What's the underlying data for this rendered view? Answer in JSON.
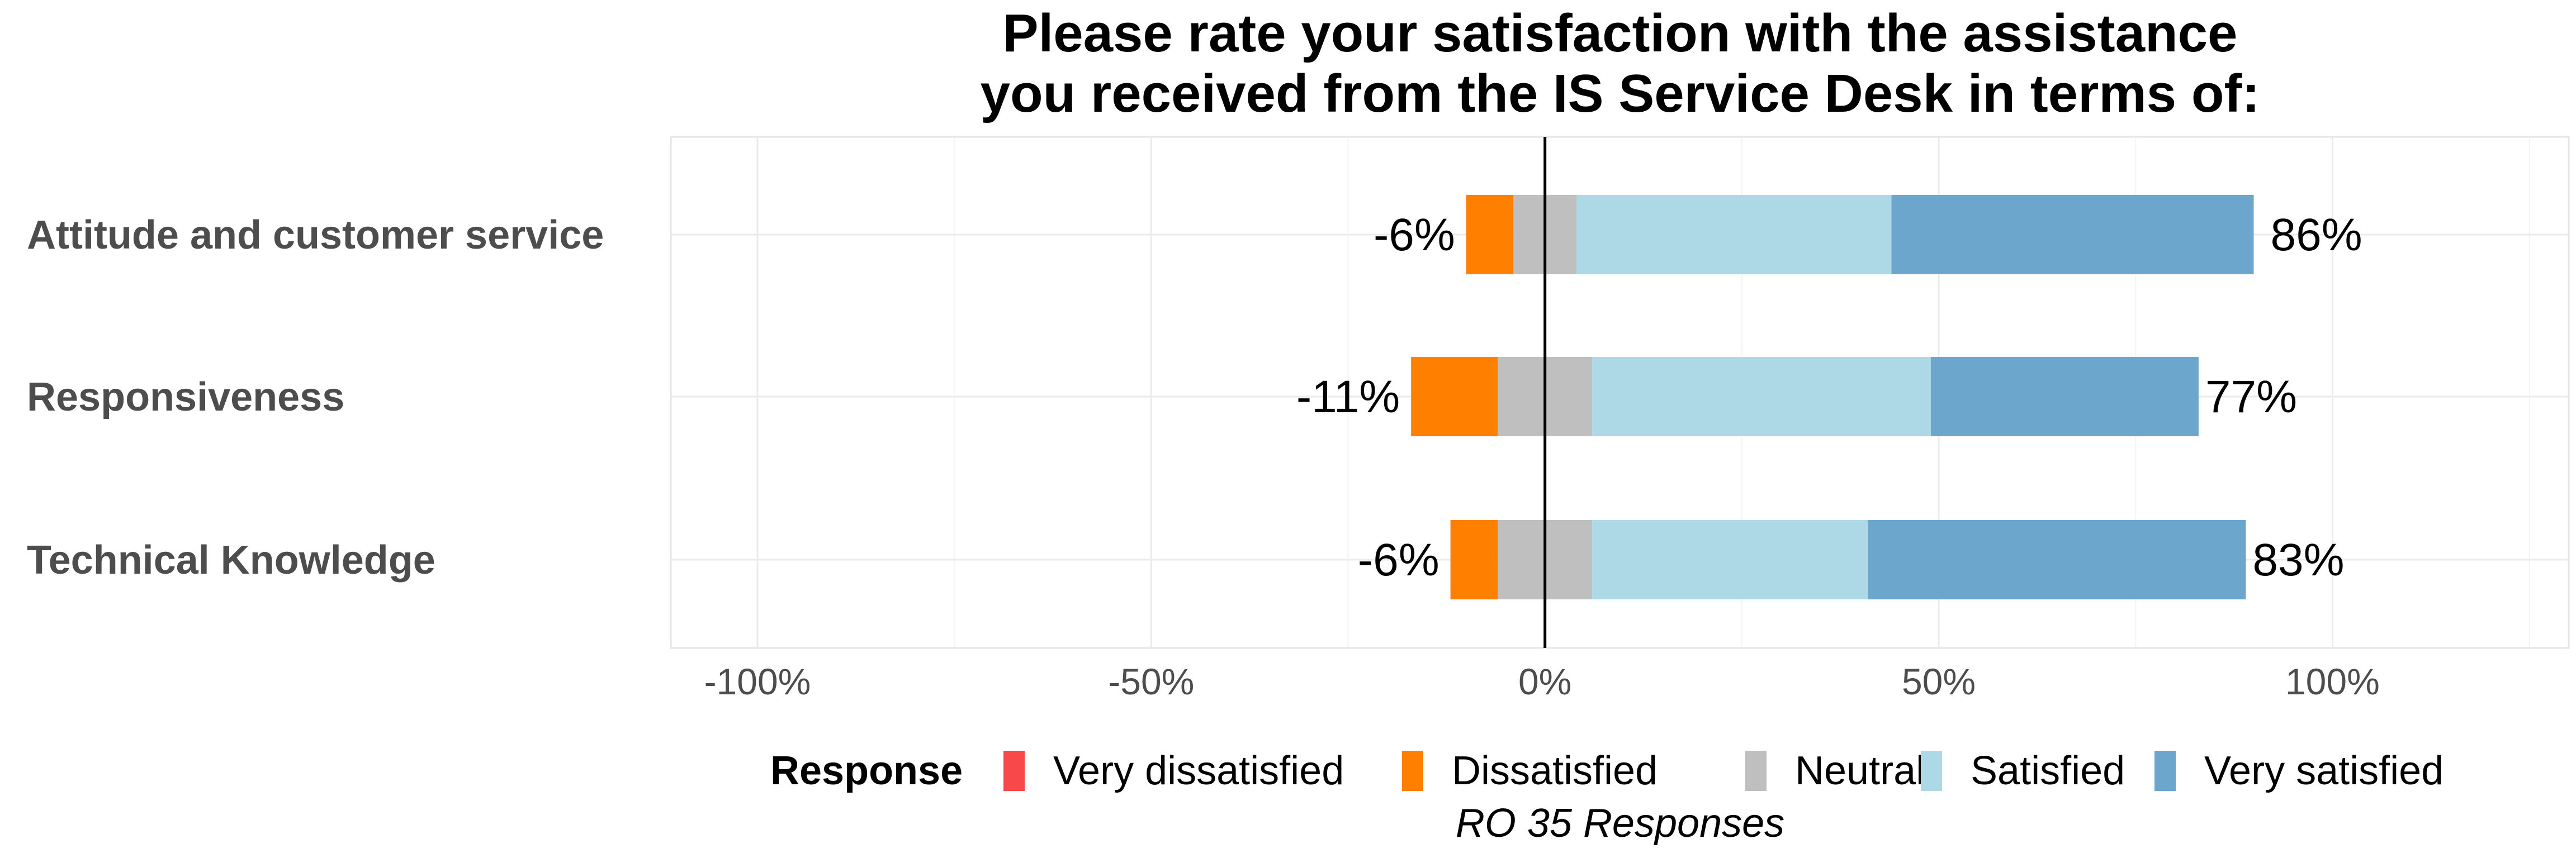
{
  "chart_data": {
    "type": "bar",
    "orientation": "horizontal",
    "stacked": "diverging",
    "title_lines": [
      "Please rate your satisfaction with the assistance",
      "you received from the IS Service Desk in terms of:"
    ],
    "categories": [
      "Attitude and customer service",
      "Responsiveness",
      "Technical Knowledge"
    ],
    "series": [
      {
        "name": "Very dissatisfied",
        "color": "#f8484a",
        "values": [
          0,
          0,
          0
        ]
      },
      {
        "name": "Dissatisfied",
        "color": "#ff7f00",
        "values": [
          6,
          11,
          6
        ]
      },
      {
        "name": "Neutral",
        "color": "#bfbfbf",
        "values": [
          8,
          12,
          12
        ]
      },
      {
        "name": "Satisfied",
        "color": "#add8e6",
        "values": [
          40,
          43,
          35
        ]
      },
      {
        "name": "Very satisfied",
        "color": "#6ca6cd",
        "values": [
          46,
          34,
          48
        ]
      }
    ],
    "left_labels": [
      "-6%",
      "-11%",
      "-6%"
    ],
    "right_labels": [
      "86%",
      "77%",
      "83%"
    ],
    "x_ticks": [
      -100,
      -50,
      0,
      50,
      100
    ],
    "x_tick_labels": [
      "-100%",
      "-50%",
      "0%",
      "50%",
      "100%"
    ],
    "xlim": [
      -111,
      130
    ],
    "grid": true,
    "legend": {
      "title": "Response",
      "position": "bottom"
    },
    "caption": "RO 35 Responses"
  }
}
